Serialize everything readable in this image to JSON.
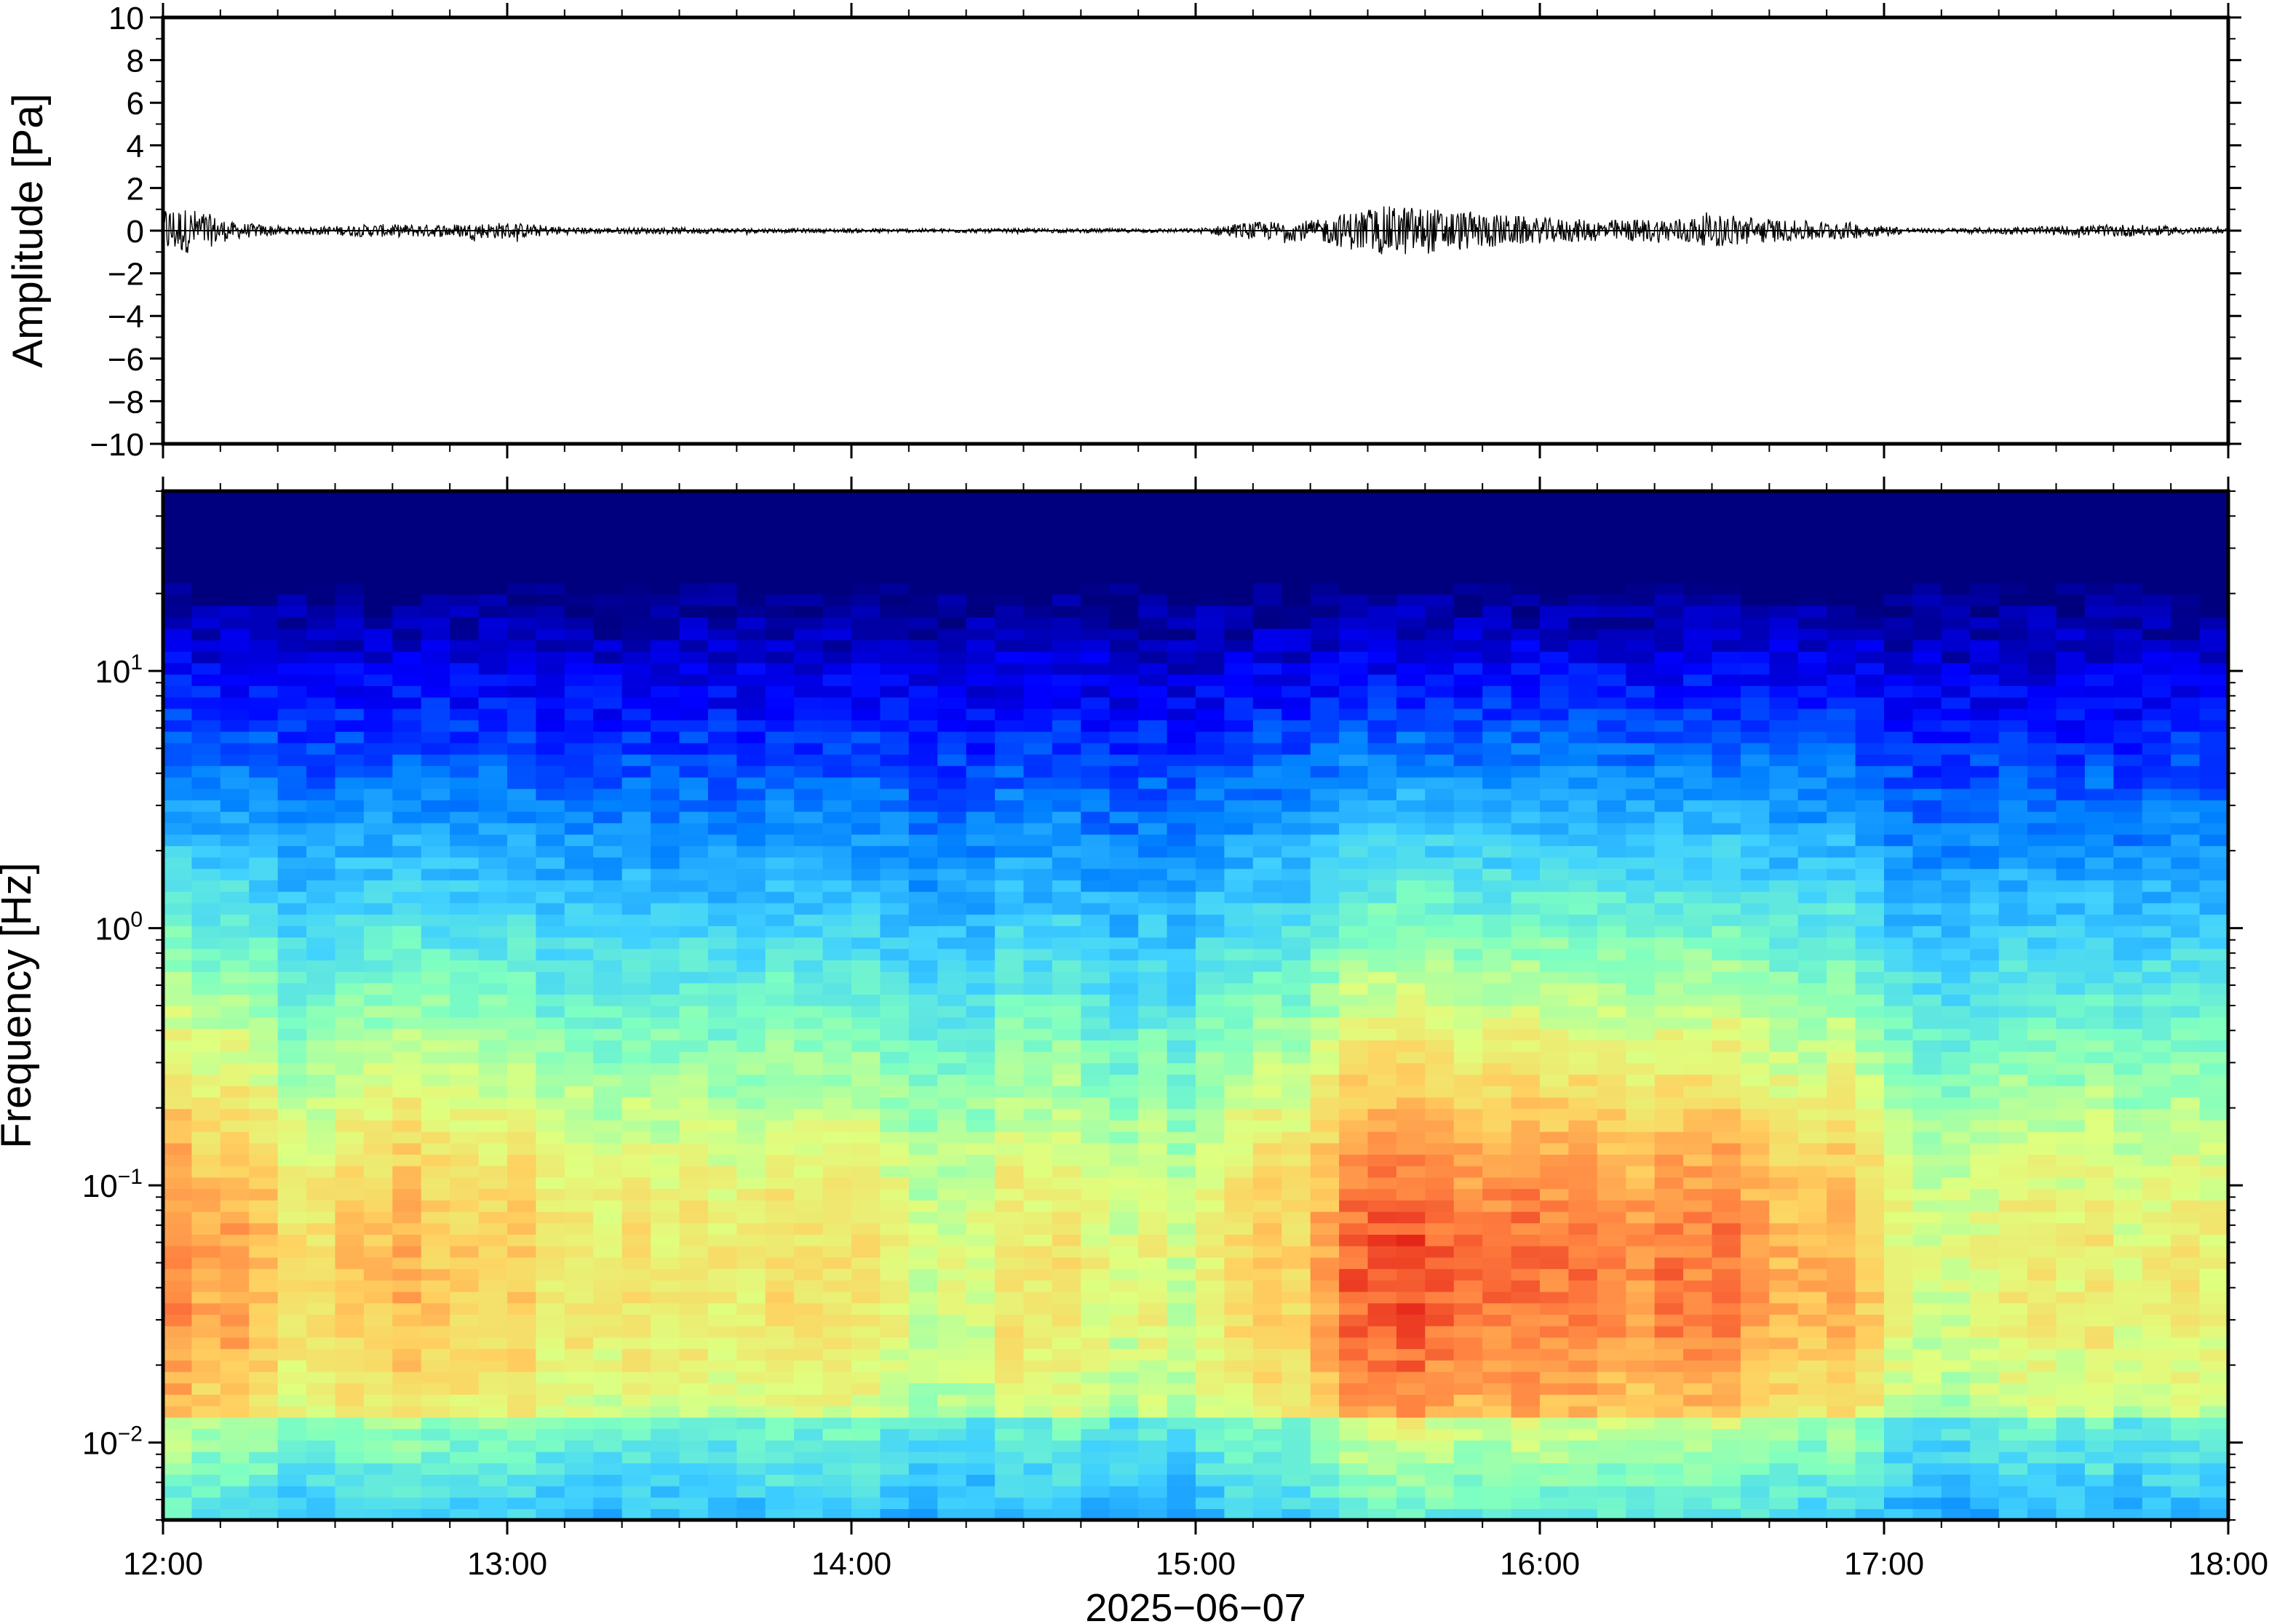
{
  "chart_data": [
    {
      "type": "line",
      "title": "",
      "xlabel": "",
      "ylabel": "Amplitude [Pa]",
      "ylim": [
        -10,
        10
      ],
      "yticks": [
        "10",
        "8",
        "6",
        "4",
        "2",
        "0",
        "−2",
        "−4",
        "−6",
        "−8",
        "−10"
      ],
      "ytick_values": [
        10,
        8,
        6,
        4,
        2,
        0,
        -2,
        -4,
        -6,
        -8,
        -10
      ],
      "xlim": [
        "12:00",
        "18:00"
      ],
      "grid": false,
      "series": [
        {
          "x_hours": [
            12.0,
            12.1,
            12.2,
            12.4,
            12.6,
            12.8,
            13.0,
            13.2,
            13.5,
            13.8,
            14.2,
            14.6,
            15.0,
            15.15,
            15.35,
            15.5,
            15.6,
            15.8,
            16.0,
            16.2,
            16.4,
            16.55,
            16.7,
            16.9,
            17.1,
            17.5,
            17.7,
            18.0
          ],
          "envelope": [
            1.2,
            1.0,
            0.4,
            0.15,
            0.3,
            0.3,
            0.4,
            0.15,
            0.15,
            0.1,
            0.1,
            0.1,
            0.1,
            0.4,
            0.5,
            1.1,
            1.2,
            0.9,
            0.6,
            0.5,
            0.6,
            0.8,
            0.5,
            0.4,
            0.1,
            0.2,
            0.3,
            0.1
          ]
        }
      ]
    },
    {
      "type": "heatmap",
      "title": "",
      "xlabel": "2025−06−07",
      "ylabel": "Frequency [Hz]",
      "yscale": "log",
      "ylim": [
        0.005,
        50
      ],
      "ytick_labels": [
        {
          "base": "10",
          "exp": "1",
          "value": 10
        },
        {
          "base": "10",
          "exp": "0",
          "value": 1
        },
        {
          "base": "10",
          "exp": "−1",
          "value": 0.1
        },
        {
          "base": "10",
          "exp": "−2",
          "value": 0.01
        }
      ],
      "xticks": [
        "12:00",
        "13:00",
        "14:00",
        "15:00",
        "16:00",
        "17:00",
        "18:00"
      ],
      "colormap": "jet",
      "colors": [
        "#00007f",
        "#0000ff",
        "#0080ff",
        "#3fd0ff",
        "#7fffc0",
        "#dfff7f",
        "#ffd060",
        "#ff8040",
        "#e01010",
        "#7f0000"
      ],
      "activity_by_time_bin": {
        "x_hours": [
          12.0,
          12.1,
          12.2,
          12.35,
          12.5,
          12.65,
          12.8,
          13.0,
          13.2,
          13.4,
          13.6,
          13.8,
          14.0,
          14.2,
          14.4,
          14.55,
          14.7,
          14.85,
          15.0,
          15.13,
          15.3,
          15.45,
          15.6,
          15.8,
          16.0,
          16.2,
          16.35,
          16.55,
          16.7,
          16.9,
          17.05,
          17.3,
          17.5,
          17.65,
          17.8,
          18.0
        ],
        "intensity": [
          0.75,
          0.7,
          0.65,
          0.5,
          0.5,
          0.62,
          0.5,
          0.55,
          0.45,
          0.45,
          0.45,
          0.45,
          0.4,
          0.35,
          0.38,
          0.45,
          0.35,
          0.38,
          0.3,
          0.5,
          0.55,
          0.78,
          0.85,
          0.8,
          0.72,
          0.7,
          0.72,
          0.72,
          0.62,
          0.6,
          0.35,
          0.35,
          0.4,
          0.42,
          0.38,
          0.35
        ]
      }
    }
  ],
  "axes": {
    "time_ticks": [
      "12:00",
      "13:00",
      "14:00",
      "15:00",
      "16:00",
      "17:00",
      "18:00"
    ],
    "date_label": "2025−06−07"
  }
}
